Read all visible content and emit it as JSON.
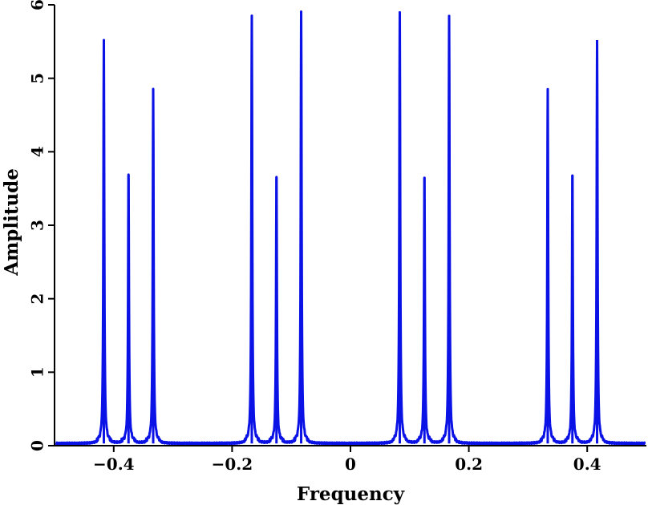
{
  "chart_data": {
    "type": "line",
    "title": "",
    "xlabel": "Frequency",
    "ylabel": "Amplitude",
    "xlim": [
      -0.5,
      0.5
    ],
    "ylim": [
      0,
      6
    ],
    "xticks": [
      -0.4,
      -0.2,
      0,
      0.2,
      0.4
    ],
    "xtick_labels": [
      "−0.4",
      "−0.2",
      "0",
      "0.2",
      "0.4"
    ],
    "yticks": [
      0,
      1,
      2,
      3,
      4,
      5,
      6
    ],
    "ytick_labels": [
      "0",
      "1",
      "2",
      "3",
      "4",
      "5",
      "6"
    ],
    "grid": false,
    "legend": "none",
    "color": "#0a12e6",
    "baseline": 0.03,
    "series": [
      {
        "peaks": [
          {
            "x": -0.4167,
            "y": 5.52
          },
          {
            "x": -0.375,
            "y": 3.68
          },
          {
            "x": -0.3333,
            "y": 4.86
          },
          {
            "x": -0.1667,
            "y": 5.86
          },
          {
            "x": -0.125,
            "y": 3.65
          },
          {
            "x": -0.0833,
            "y": 5.91
          },
          {
            "x": 0.0833,
            "y": 5.91
          },
          {
            "x": 0.125,
            "y": 3.65
          },
          {
            "x": 0.1667,
            "y": 5.86
          },
          {
            "x": 0.3333,
            "y": 4.86
          },
          {
            "x": 0.375,
            "y": 3.68
          },
          {
            "x": 0.4167,
            "y": 5.52
          }
        ]
      }
    ]
  }
}
